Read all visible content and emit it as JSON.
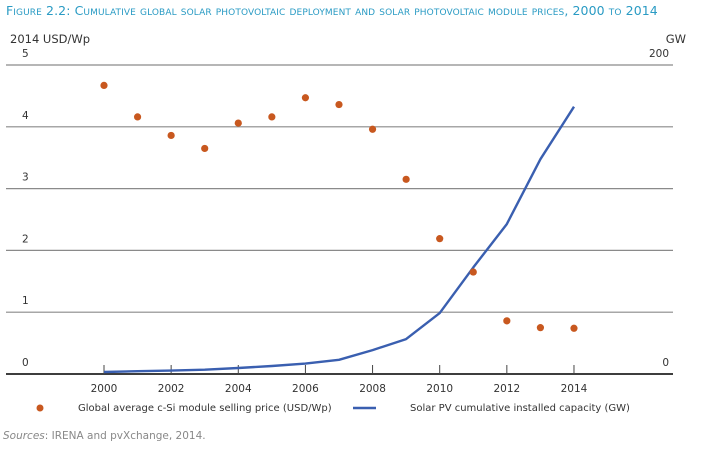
{
  "title": "Figure 2.2: Cumulative global solar photovoltaic deployment and solar photovoltaic module prices, 2000 to 2014",
  "source": {
    "label": "Sources",
    "text": ": IRENA and pvXchange, 2014."
  },
  "colors": {
    "title": "#2a9bc4",
    "price_dot": "#c8581f",
    "capacity_line": "#3a5fb0",
    "grid": "#8a8a8a",
    "axis": "#222222"
  },
  "chart_data": {
    "type": "line+scatter",
    "title": "Cumulative global solar photovoltaic deployment and solar photovoltaic module prices, 2000 to 2014",
    "ylabel_left": "2014 USD/Wp",
    "ylabel_right": "GW",
    "ylim_left": [
      0,
      5
    ],
    "ylim_right": [
      0,
      200
    ],
    "left_ticks": [
      "0",
      "1",
      "2",
      "3",
      "4",
      "5"
    ],
    "right_ticks": [
      "0",
      "200"
    ],
    "x": [
      2000,
      2001,
      2002,
      2003,
      2004,
      2005,
      2006,
      2007,
      2008,
      2009,
      2010,
      2011,
      2012,
      2013,
      2014
    ],
    "x_tick_labels": [
      "2000",
      "2002",
      "2004",
      "2006",
      "2008",
      "2010",
      "2012",
      "2014"
    ],
    "grid": true,
    "legend_position": "bottom",
    "series": [
      {
        "name": "Global average c-Si module selling price (USD/Wp)",
        "type": "scatter",
        "axis": "left",
        "values": [
          4.67,
          4.16,
          3.86,
          3.65,
          4.06,
          4.16,
          4.47,
          4.36,
          3.96,
          3.15,
          2.19,
          1.65,
          0.86,
          0.75,
          0.74
        ]
      },
      {
        "name": "Solar PV cumulative installed capacity (GW)",
        "type": "line",
        "axis": "right",
        "values": [
          1.3,
          1.8,
          2.2,
          2.8,
          3.9,
          5.2,
          6.7,
          9.2,
          15.5,
          22.6,
          39.4,
          69.0,
          97.0,
          139.0,
          173.0
        ]
      }
    ]
  }
}
